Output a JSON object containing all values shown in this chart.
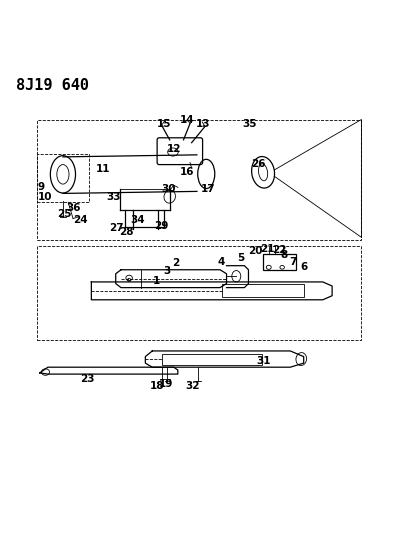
{
  "title": "8J19 640",
  "background_color": "#ffffff",
  "line_color": "#000000",
  "title_fontsize": 11,
  "label_fontsize": 7.5,
  "figsize": [
    4.06,
    5.33
  ],
  "dpi": 100
}
